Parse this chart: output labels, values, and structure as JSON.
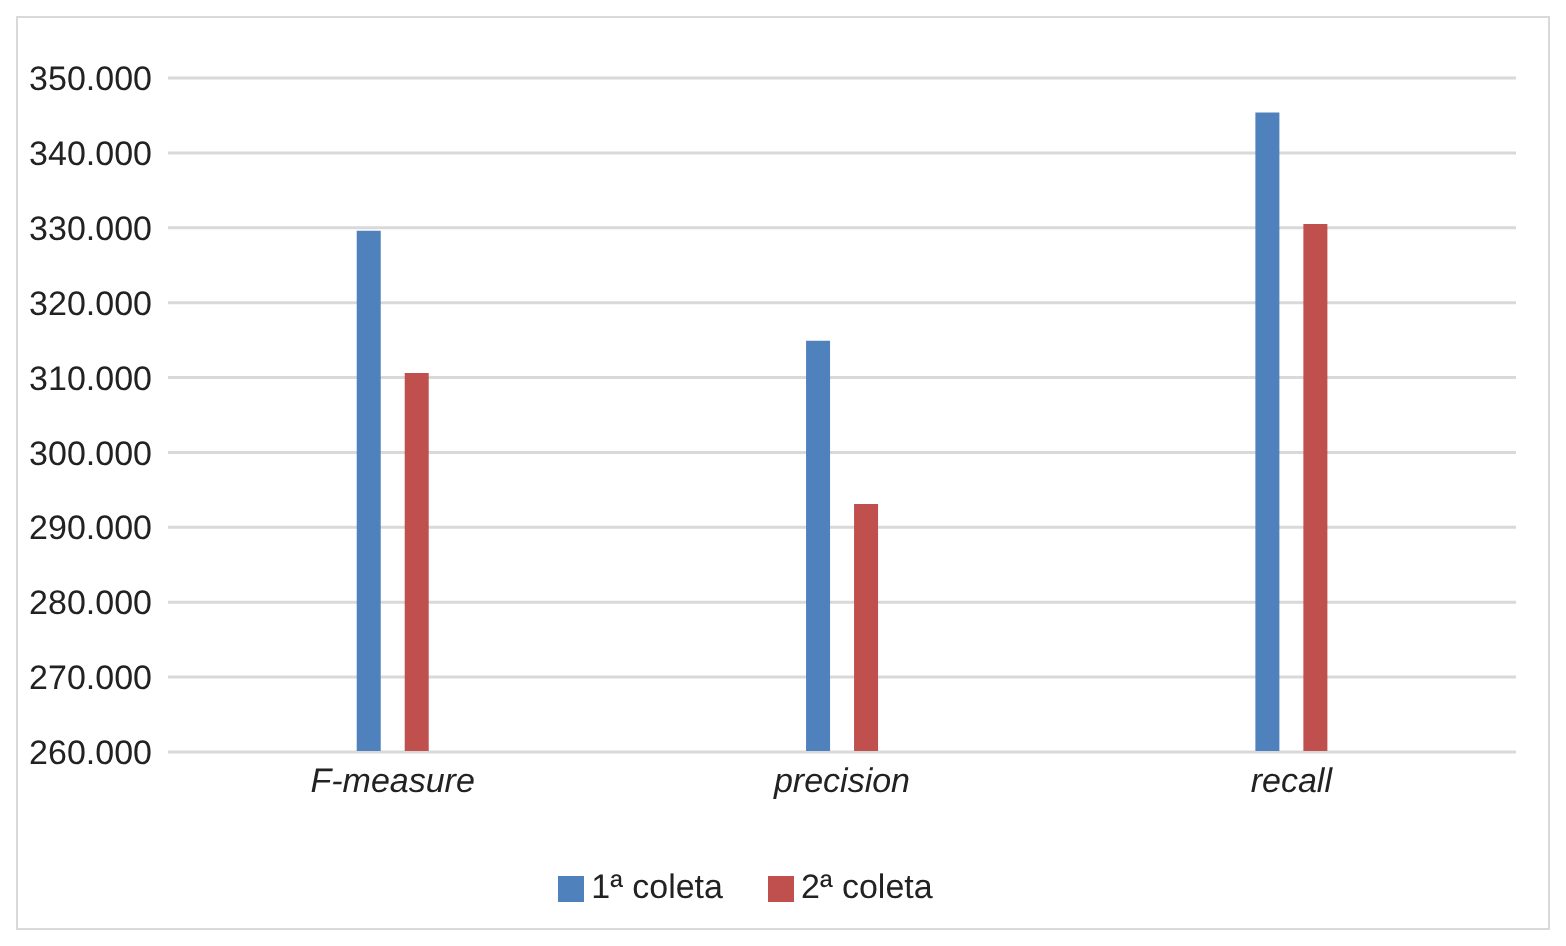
{
  "chart_data": {
    "type": "bar",
    "categories": [
      "F-measure",
      "precision",
      "recall"
    ],
    "series": [
      {
        "name": "1ª coleta",
        "color": "#4f81bd",
        "values": [
          329.6,
          314.9,
          345.4
        ]
      },
      {
        "name": "2ª coleta",
        "color": "#c0504d",
        "values": [
          310.6,
          293.1,
          330.5
        ]
      }
    ],
    "ylim": [
      260,
      350
    ],
    "yticks": [
      {
        "value": 260,
        "label": "260.000"
      },
      {
        "value": 270,
        "label": "270.000"
      },
      {
        "value": 280,
        "label": "280.000"
      },
      {
        "value": 290,
        "label": "290.000"
      },
      {
        "value": 300,
        "label": "300.000"
      },
      {
        "value": 310,
        "label": "310.000"
      },
      {
        "value": 320,
        "label": "320.000"
      },
      {
        "value": 330,
        "label": "330.000"
      },
      {
        "value": 340,
        "label": "340.000"
      },
      {
        "value": 350,
        "label": "350.000"
      }
    ],
    "grid": "y",
    "legend": "bottom"
  }
}
